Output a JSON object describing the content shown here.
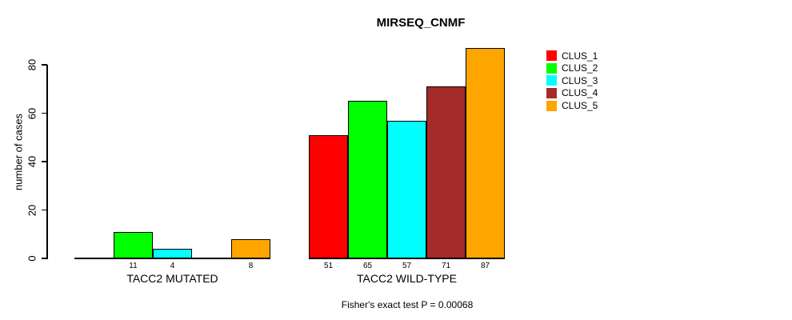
{
  "title": "MIRSEQ_CNMF",
  "chart_data": {
    "type": "bar",
    "title": "MIRSEQ_CNMF",
    "xlabel": "",
    "ylabel": "number of cases",
    "ylim": [
      0,
      87
    ],
    "yticks": [
      0,
      20,
      40,
      60,
      80
    ],
    "grid": false,
    "legend_position": "right",
    "categories": [
      "TACC2 MUTATED",
      "TACC2 WILD-TYPE"
    ],
    "series": [
      {
        "name": "CLUS_1",
        "color": "#FF0000",
        "values": [
          0,
          51
        ]
      },
      {
        "name": "CLUS_2",
        "color": "#00FF00",
        "values": [
          11,
          65
        ]
      },
      {
        "name": "CLUS_3",
        "color": "#00FFFF",
        "values": [
          4,
          57
        ]
      },
      {
        "name": "CLUS_4",
        "color": "#A52A2A",
        "values": [
          0,
          71
        ]
      },
      {
        "name": "CLUS_5",
        "color": "#FFA500",
        "values": [
          8,
          87
        ]
      }
    ],
    "bar_value_labels": {
      "TACC2 MUTATED": [
        "11",
        "4",
        "8"
      ],
      "TACC2 WILD-TYPE": [
        "51",
        "65",
        "57",
        "71",
        "87"
      ]
    },
    "annotation": "Fisher's exact test P = 0.00068",
    "axis_color": "#000000",
    "background_color": "#FFFFFF"
  }
}
